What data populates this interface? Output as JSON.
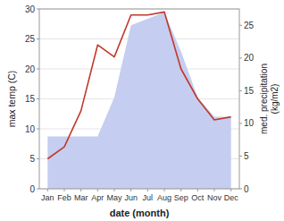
{
  "chart_data": {
    "type": "line",
    "categories": [
      "Jan",
      "Feb",
      "Mar",
      "Apr",
      "May",
      "Jun",
      "Jul",
      "Aug",
      "Sep",
      "Oct",
      "Nov",
      "Dec"
    ],
    "xlabel": "date (month)",
    "ylabel": "max temp (C)",
    "y2label": "med. precipitation\n(kg/m2)",
    "ylim": [
      0,
      30
    ],
    "yticks": [
      0,
      5,
      10,
      15,
      20,
      25,
      30
    ],
    "y2lim": [
      0,
      27.5
    ],
    "y2ticks": [
      0,
      5,
      10,
      15,
      20,
      25
    ],
    "grid": true,
    "series": [
      {
        "type": "area",
        "axis": "y2",
        "color": "#c5cdf0",
        "values": [
          8.0,
          8.0,
          8.0,
          8.0,
          14.0,
          25.0,
          26.0,
          27.0,
          21.0,
          14.0,
          11.0,
          11.0
        ]
      },
      {
        "type": "line",
        "color": "#c0392b",
        "values": [
          5.0,
          7.0,
          13.0,
          24.0,
          22.0,
          29.0,
          29.0,
          29.5,
          20.0,
          15.0,
          11.5,
          12.0
        ]
      }
    ]
  }
}
